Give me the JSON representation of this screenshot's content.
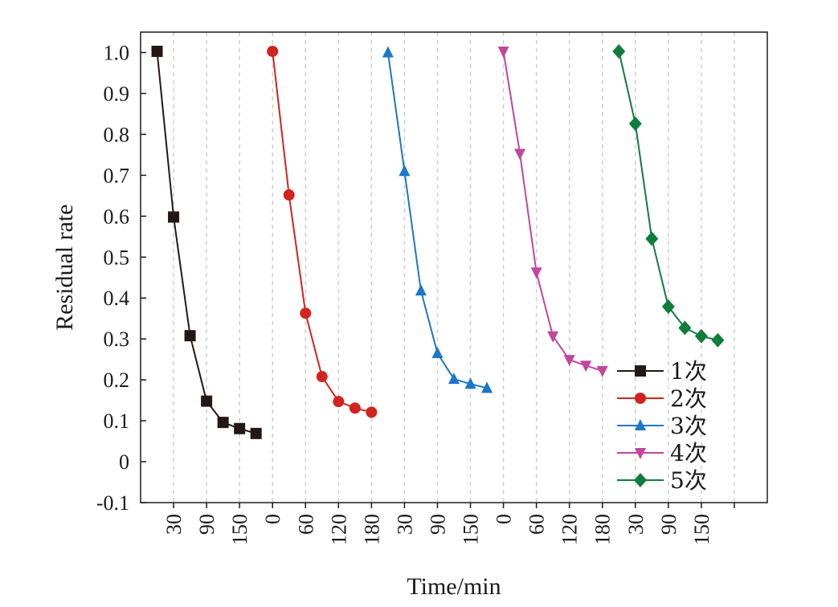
{
  "chart_data": {
    "type": "line",
    "title": "",
    "xlabel": "Time/min",
    "ylabel": "Residual rate",
    "ylim": [
      -0.1,
      1.05
    ],
    "yticks": [
      -0.1,
      0,
      0.1,
      0.2,
      0.3,
      0.4,
      0.5,
      0.6,
      0.7,
      0.8,
      0.9,
      1.0
    ],
    "ytick_labels": [
      "-0.1",
      "0",
      "0.1",
      "0.2",
      "0.3",
      "0.4",
      "0.5",
      "0.6",
      "0.7",
      "0.8",
      "0.9",
      "1.0"
    ],
    "xlim": [
      0,
      1140
    ],
    "x_tick_positions": [
      60,
      120,
      180,
      240,
      300,
      360,
      420,
      480,
      540,
      600,
      660,
      720,
      780,
      840,
      900,
      960,
      1020,
      1080
    ],
    "x_tick_labels": [
      "30",
      "90",
      "150",
      "0",
      "60",
      "120",
      "180",
      "30",
      "90",
      "150",
      "0",
      "60",
      "120",
      "180",
      "30",
      "90",
      "150",
      ""
    ],
    "grid": "vertical-dashed",
    "legend_position": "bottom-right",
    "series": [
      {
        "name": "1次",
        "color": "#231815",
        "marker": "square",
        "x": [
          30,
          60,
          90,
          120,
          150,
          180,
          210
        ],
        "y": [
          1.003,
          0.598,
          0.308,
          0.148,
          0.096,
          0.081,
          0.069
        ]
      },
      {
        "name": "2次",
        "color": "#d2231e",
        "marker": "circle",
        "x": [
          240,
          270,
          300,
          330,
          360,
          390,
          420
        ],
        "y": [
          1.003,
          0.652,
          0.363,
          0.208,
          0.147,
          0.131,
          0.121
        ]
      },
      {
        "name": "3次",
        "color": "#1a77c9",
        "marker": "triangle-up",
        "x": [
          450,
          480,
          510,
          540,
          570,
          600,
          630
        ],
        "y": [
          1.0,
          0.71,
          0.418,
          0.265,
          0.202,
          0.19,
          0.18
        ]
      },
      {
        "name": "4次",
        "color": "#c2469d",
        "marker": "triangle-down",
        "x": [
          660,
          690,
          720,
          750,
          780,
          810,
          840
        ],
        "y": [
          1.003,
          0.753,
          0.463,
          0.307,
          0.249,
          0.235,
          0.222
        ]
      },
      {
        "name": "5次",
        "color": "#0f7d3c",
        "marker": "diamond",
        "x": [
          870,
          900,
          930,
          960,
          990,
          1020,
          1050
        ],
        "y": [
          1.003,
          0.826,
          0.545,
          0.379,
          0.327,
          0.307,
          0.297
        ]
      }
    ]
  }
}
